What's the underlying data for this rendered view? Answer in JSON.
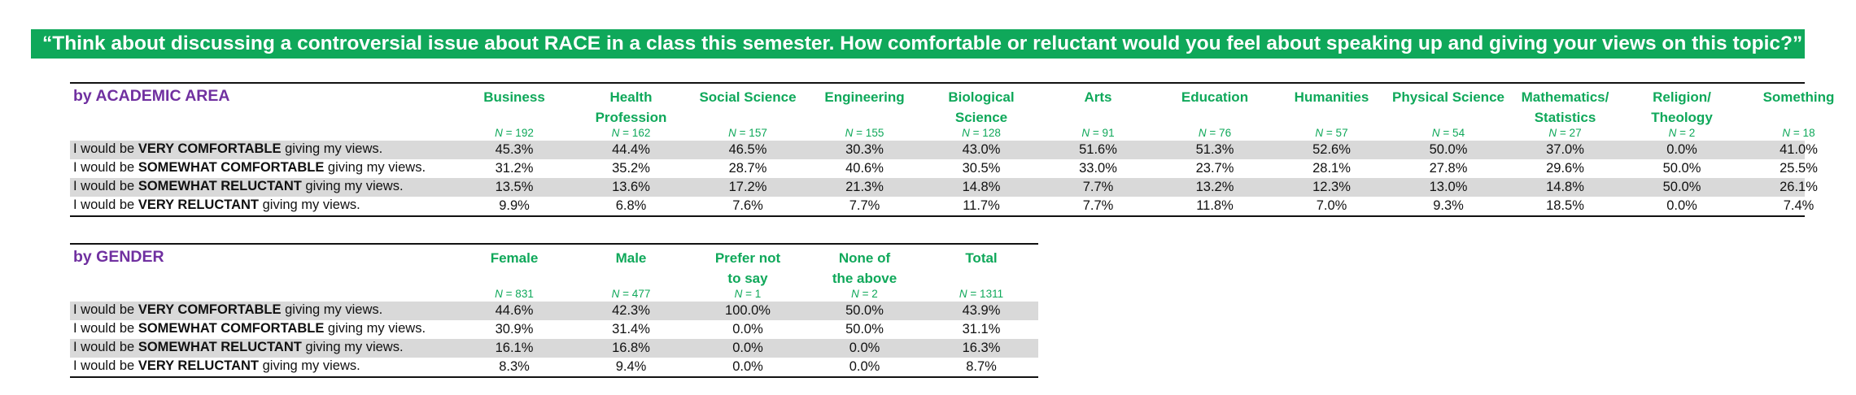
{
  "title": "“Think about discussing a controversial issue about RACE in a class this semester. How comfortable or reluctant would you feel about speaking up and giving your views on this topic?”",
  "academic": {
    "section_label": "by ACADEMIC AREA",
    "columns": [
      {
        "name1": "Business",
        "name2": "",
        "n": "= 192"
      },
      {
        "name1": "Health",
        "name2": "Profession",
        "n": "= 162"
      },
      {
        "name1": "Social Science",
        "name2": "",
        "n": "= 157"
      },
      {
        "name1": "Engineering",
        "name2": "",
        "n": "= 155"
      },
      {
        "name1": "Biological",
        "name2": "Science",
        "n": "= 128"
      },
      {
        "name1": "Arts",
        "name2": "",
        "n": "= 91"
      },
      {
        "name1": "Education",
        "name2": "",
        "n": "= 76"
      },
      {
        "name1": "Humanities",
        "name2": "",
        "n": "= 57"
      },
      {
        "name1": "Physical Science",
        "name2": "",
        "n": "= 54"
      },
      {
        "name1": "Mathematics/",
        "name2": "Statistics",
        "n": "= 27"
      },
      {
        "name1": "Religion/",
        "name2": "Theology",
        "n": "= 2"
      },
      {
        "name1": "Something",
        "name2": "",
        "n": "= 18"
      }
    ],
    "rows": [
      {
        "pre": "I would be ",
        "bold": "VERY COMFORTABLE",
        "post": " giving my views.",
        "values": [
          "45.3%",
          "44.4%",
          "46.5%",
          "30.3%",
          "43.0%",
          "51.6%",
          "51.3%",
          "52.6%",
          "50.0%",
          "37.0%",
          "0.0%",
          "41.0%"
        ]
      },
      {
        "pre": "I would be ",
        "bold": "SOMEWHAT COMFORTABLE",
        "post": " giving my views.",
        "values": [
          "31.2%",
          "35.2%",
          "28.7%",
          "40.6%",
          "30.5%",
          "33.0%",
          "23.7%",
          "28.1%",
          "27.8%",
          "29.6%",
          "50.0%",
          "25.5%"
        ]
      },
      {
        "pre": "I would be ",
        "bold": "SOMEWHAT RELUCTANT",
        "post": " giving my views.",
        "values": [
          "13.5%",
          "13.6%",
          "17.2%",
          "21.3%",
          "14.8%",
          "7.7%",
          "13.2%",
          "12.3%",
          "13.0%",
          "14.8%",
          "50.0%",
          "26.1%"
        ]
      },
      {
        "pre": "I would be ",
        "bold": "VERY RELUCTANT",
        "post": " giving my views.",
        "values": [
          "9.9%",
          "6.8%",
          "7.6%",
          "7.7%",
          "11.7%",
          "7.7%",
          "11.8%",
          "7.0%",
          "9.3%",
          "18.5%",
          "0.0%",
          "7.4%"
        ]
      }
    ]
  },
  "gender": {
    "section_label": "by GENDER",
    "columns": [
      {
        "name1": "Female",
        "name2": "",
        "n": "= 831"
      },
      {
        "name1": "Male",
        "name2": "",
        "n": "= 477"
      },
      {
        "name1": "Prefer not",
        "name2": "to say",
        "n": "= 1"
      },
      {
        "name1": "None of",
        "name2": "the above",
        "n": "= 2"
      },
      {
        "name1": "Total",
        "name2": "",
        "n": "= 1311"
      }
    ],
    "rows": [
      {
        "pre": "I would be ",
        "bold": "VERY COMFORTABLE",
        "post": " giving my views.",
        "values": [
          "44.6%",
          "42.3%",
          "100.0%",
          "50.0%",
          "43.9%"
        ]
      },
      {
        "pre": "I would be ",
        "bold": "SOMEWHAT COMFORTABLE",
        "post": " giving my views.",
        "values": [
          "30.9%",
          "31.4%",
          "0.0%",
          "50.0%",
          "31.1%"
        ]
      },
      {
        "pre": "I would be ",
        "bold": "SOMEWHAT RELUCTANT",
        "post": " giving my views.",
        "values": [
          "16.1%",
          "16.8%",
          "0.0%",
          "0.0%",
          "16.3%"
        ]
      },
      {
        "pre": "I would be ",
        "bold": "VERY RELUCTANT",
        "post": " giving my views.",
        "values": [
          "8.3%",
          "9.4%",
          "0.0%",
          "0.0%",
          "8.7%"
        ]
      }
    ]
  }
}
